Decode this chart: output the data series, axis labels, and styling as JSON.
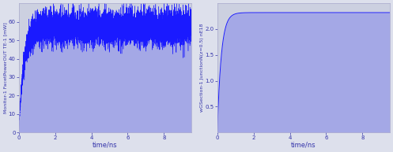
{
  "fig_width": 4.97,
  "fig_height": 1.93,
  "dpi": 100,
  "bg_color": "#ccd0e0",
  "fig_bg_color": "#dde0ec",
  "line_color": "#1a1aff",
  "subplot1": {
    "ylabel": "Monitor-1 FacetPowerOUT TE-1 [mW]",
    "xlabel": "time/ns",
    "xlim": [
      0,
      9.5
    ],
    "ylim": [
      0,
      70
    ],
    "yticks": [
      0,
      10,
      20,
      30,
      40,
      50,
      60
    ],
    "xticks": [
      0,
      2,
      4,
      6,
      8
    ],
    "steady_state_mean": 57.0,
    "steady_state_noise": 4.5,
    "tau": 0.28
  },
  "subplot2": {
    "ylabel": "wGSection-1 JunctionN(z=0.5) nE18",
    "xlabel": "time/ns",
    "xlim": [
      0,
      9.5
    ],
    "ylim": [
      0,
      2.5
    ],
    "yticks": [
      0.5,
      1.0,
      1.5,
      2.0
    ],
    "xticks": [
      0,
      2,
      4,
      6,
      8
    ],
    "steady_state": 2.32,
    "tau": 0.22
  }
}
